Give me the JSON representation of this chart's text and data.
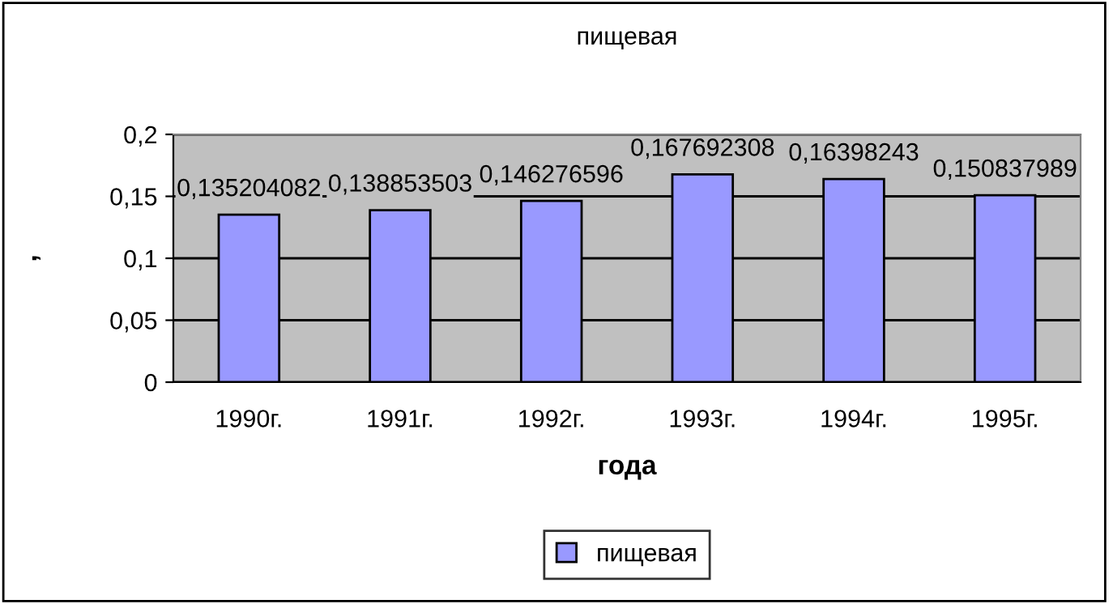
{
  "chart_data": {
    "type": "bar",
    "title": "пищевая",
    "xlabel": "года",
    "ylabel": ",",
    "categories": [
      "1990г.",
      "1991г.",
      "1992г.",
      "1993г.",
      "1994г.",
      "1995г."
    ],
    "series": [
      {
        "name": "пищевая",
        "color": "#9999ff",
        "values": [
          0.135204082,
          0.138853503,
          0.146276596,
          0.167692308,
          0.16398243,
          0.150837989
        ],
        "value_labels": [
          "0,135204082",
          "0,138853503",
          "0,146276596",
          "0,167692308",
          "0,16398243",
          "0,150837989"
        ]
      }
    ],
    "ylim": [
      0,
      0.2
    ],
    "yticks": [
      0,
      {
        "value": 0.05,
        "label": "0,05"
      },
      {
        "value": 0.1,
        "label": "0,1"
      },
      {
        "value": 0.15,
        "label": "0,15"
      },
      {
        "value": 0.2,
        "label": "0,2"
      }
    ],
    "grid": "y",
    "legend": "bottom"
  }
}
